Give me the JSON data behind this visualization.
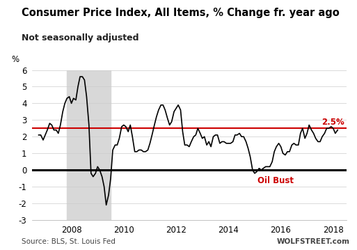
{
  "title": "Consumer Price Index, All Items, % Change fr. year ago",
  "subtitle": "Not seasonally adjusted",
  "ylabel": "%",
  "source_left": "Source: BLS, St. Louis Fed",
  "source_right": "WOLFSTREET.com",
  "ylim": [
    -3,
    6
  ],
  "yticks": [
    -3,
    -2,
    -1,
    0,
    1,
    2,
    3,
    4,
    5,
    6
  ],
  "reference_line": 2.5,
  "reference_label": "2.5%",
  "zero_line": 0,
  "oil_bust_label": "Oil Bust",
  "oil_bust_x": 2015.1,
  "oil_bust_y": -0.65,
  "recession_start": 2007.83,
  "recession_end": 2009.5,
  "recession_color": "#d8d8d8",
  "line_color": "#000000",
  "ref_line_color": "#cc0000",
  "zero_line_color": "#000000",
  "bg_color": "#ffffff",
  "dates": [
    2006.75,
    2006.83,
    2006.92,
    2007.0,
    2007.08,
    2007.17,
    2007.25,
    2007.33,
    2007.42,
    2007.5,
    2007.58,
    2007.67,
    2007.75,
    2007.83,
    2007.92,
    2008.0,
    2008.08,
    2008.17,
    2008.25,
    2008.33,
    2008.42,
    2008.5,
    2008.58,
    2008.67,
    2008.75,
    2008.83,
    2008.92,
    2009.0,
    2009.08,
    2009.17,
    2009.25,
    2009.33,
    2009.42,
    2009.5,
    2009.58,
    2009.67,
    2009.75,
    2009.83,
    2009.92,
    2010.0,
    2010.08,
    2010.17,
    2010.25,
    2010.33,
    2010.42,
    2010.5,
    2010.58,
    2010.67,
    2010.75,
    2010.83,
    2010.92,
    2011.0,
    2011.08,
    2011.17,
    2011.25,
    2011.33,
    2011.42,
    2011.5,
    2011.58,
    2011.67,
    2011.75,
    2011.83,
    2011.92,
    2012.0,
    2012.08,
    2012.17,
    2012.25,
    2012.33,
    2012.42,
    2012.5,
    2012.58,
    2012.67,
    2012.75,
    2012.83,
    2012.92,
    2013.0,
    2013.08,
    2013.17,
    2013.25,
    2013.33,
    2013.42,
    2013.5,
    2013.58,
    2013.67,
    2013.75,
    2013.83,
    2013.92,
    2014.0,
    2014.08,
    2014.17,
    2014.25,
    2014.33,
    2014.42,
    2014.5,
    2014.58,
    2014.67,
    2014.75,
    2014.83,
    2014.92,
    2015.0,
    2015.08,
    2015.17,
    2015.25,
    2015.33,
    2015.42,
    2015.5,
    2015.58,
    2015.67,
    2015.75,
    2015.83,
    2015.92,
    2016.0,
    2016.08,
    2016.17,
    2016.25,
    2016.33,
    2016.42,
    2016.5,
    2016.58,
    2016.67,
    2016.75,
    2016.83,
    2016.92,
    2017.0,
    2017.08,
    2017.17,
    2017.25,
    2017.33,
    2017.42,
    2017.5,
    2017.58,
    2017.67,
    2017.75,
    2017.83,
    2017.92,
    2018.0,
    2018.08,
    2018.17
  ],
  "values": [
    2.1,
    2.1,
    1.8,
    2.1,
    2.4,
    2.8,
    2.7,
    2.4,
    2.4,
    2.2,
    2.7,
    3.5,
    4.0,
    4.3,
    4.4,
    4.0,
    4.3,
    4.2,
    5.0,
    5.6,
    5.6,
    5.4,
    4.4,
    2.7,
    -0.2,
    -0.4,
    -0.2,
    0.2,
    0.0,
    -0.4,
    -1.0,
    -2.1,
    -1.5,
    -0.5,
    1.2,
    1.5,
    1.5,
    1.9,
    2.6,
    2.7,
    2.6,
    2.3,
    2.7,
    2.0,
    1.1,
    1.1,
    1.2,
    1.2,
    1.1,
    1.1,
    1.2,
    1.6,
    2.1,
    2.7,
    3.2,
    3.6,
    3.9,
    3.9,
    3.6,
    3.1,
    2.7,
    2.9,
    3.5,
    3.7,
    3.9,
    3.6,
    2.3,
    1.5,
    1.5,
    1.4,
    1.7,
    2.0,
    2.1,
    2.5,
    2.2,
    1.9,
    2.0,
    1.5,
    1.7,
    1.4,
    2.0,
    2.1,
    2.1,
    1.6,
    1.7,
    1.7,
    1.6,
    1.6,
    1.6,
    1.7,
    2.1,
    2.1,
    2.2,
    2.0,
    2.0,
    1.7,
    1.3,
    0.8,
    0.0,
    -0.2,
    -0.1,
    0.1,
    0.0,
    0.1,
    0.2,
    0.2,
    0.2,
    0.5,
    1.1,
    1.4,
    1.6,
    1.4,
    1.0,
    0.9,
    1.1,
    1.1,
    1.5,
    1.6,
    1.5,
    1.5,
    2.2,
    2.5,
    1.9,
    2.2,
    2.7,
    2.4,
    2.2,
    1.9,
    1.7,
    1.7,
    2.0,
    2.2,
    2.5,
    2.5,
    2.6,
    2.5,
    2.2,
    2.4
  ],
  "xlim_start": 2006.5,
  "xlim_end": 2018.5,
  "xtick_positions": [
    2008,
    2010,
    2012,
    2014,
    2016,
    2018
  ],
  "xtick_labels": [
    "2008",
    "2010",
    "2012",
    "2014",
    "2016",
    "2018"
  ]
}
